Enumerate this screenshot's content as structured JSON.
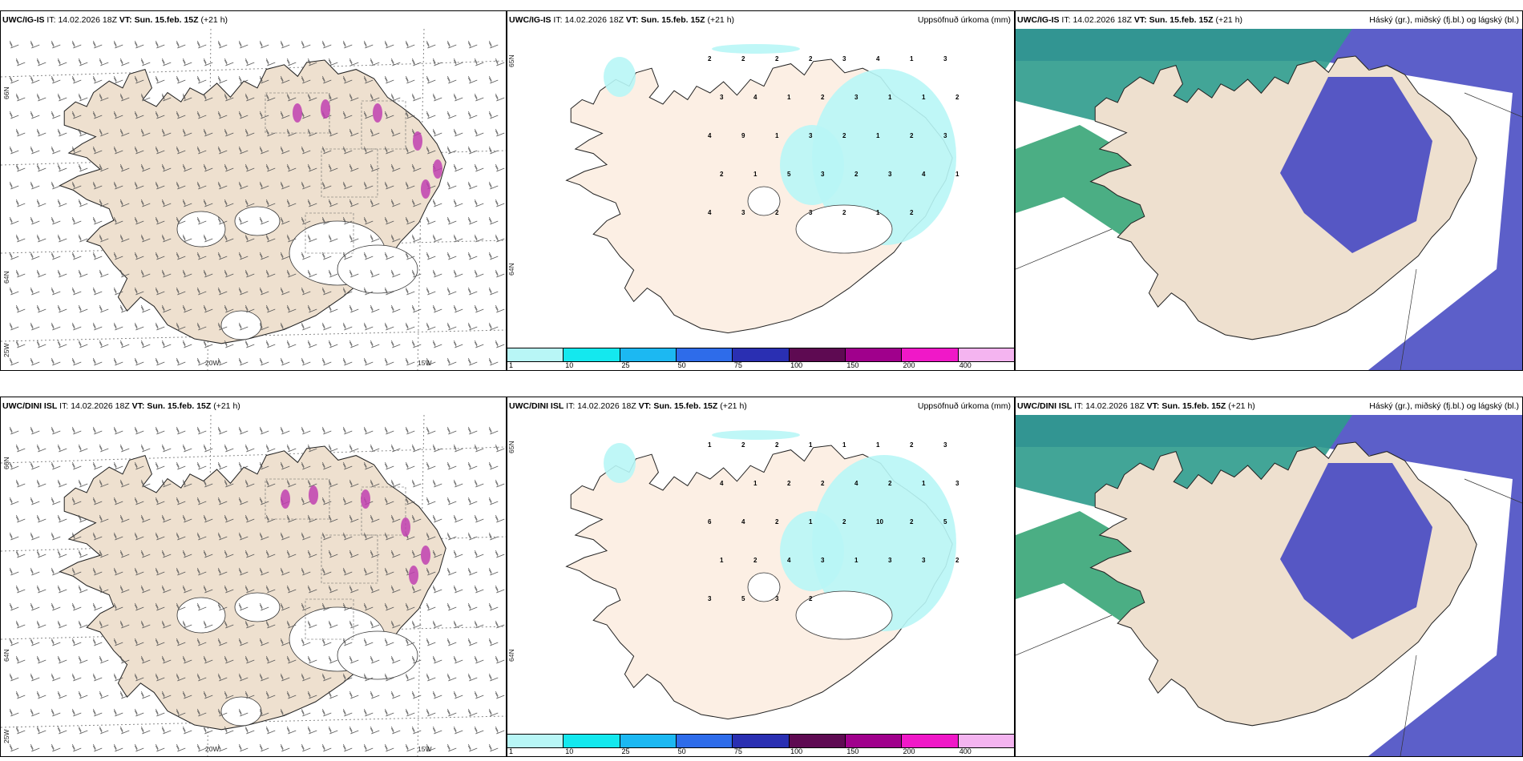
{
  "rows": [
    {
      "model": "UWC/IG-IS",
      "panels": [
        {
          "kind": "wind",
          "it_label": "IT:",
          "it_value": "14.02.2026 18Z",
          "vt_label": "VT:",
          "vt_value": "Sun. 15.feb. 15Z",
          "lead": "(+21 h)",
          "right_title": "",
          "lat_labels": [
            "66N",
            "64N",
            "25W"
          ],
          "lon_labels": [
            "20W",
            "15W"
          ]
        },
        {
          "kind": "precip",
          "it_label": "IT:",
          "it_value": "14.02.2026 18Z",
          "vt_label": "VT:",
          "vt_value": "Sun. 15.feb. 15Z",
          "lead": "(+21 h)",
          "right_title": "Uppsöfnuð úrkoma (mm)",
          "lat_labels": [
            "65N",
            "64N"
          ],
          "numbers": [
            "2",
            "2",
            "2",
            "2",
            "3",
            "4",
            "1",
            "3",
            "3",
            "4",
            "1",
            "2",
            "3",
            "1",
            "1",
            "2",
            "4",
            "9",
            "1",
            "3",
            "2",
            "1",
            "2",
            "3",
            "2",
            "1",
            "5",
            "3",
            "2",
            "3",
            "4",
            "1",
            "4",
            "3",
            "2",
            "3",
            "2",
            "1",
            "2"
          ]
        },
        {
          "kind": "cloud",
          "it_label": "IT:",
          "it_value": "14.02.2026 18Z",
          "vt_label": "VT:",
          "vt_value": "Sun. 15.feb. 15Z",
          "lead": "(+21 h)",
          "right_title": "Háský (gr.), miðský (fj.bl.) og lágský (bl.)"
        }
      ]
    },
    {
      "model": "UWC/DINI ISL",
      "panels": [
        {
          "kind": "wind",
          "it_label": "IT:",
          "it_value": "14.02.2026 18Z",
          "vt_label": "VT:",
          "vt_value": "Sun. 15.feb. 15Z",
          "lead": "(+21 h)",
          "right_title": "",
          "lat_labels": [
            "66N",
            "64N",
            "25W"
          ],
          "lon_labels": [
            "20W",
            "15W"
          ]
        },
        {
          "kind": "precip",
          "it_label": "IT:",
          "it_value": "14.02.2026 18Z",
          "vt_label": "VT:",
          "vt_value": "Sun. 15.feb. 15Z",
          "lead": "(+21 h)",
          "right_title": "Uppsöfnuð úrkoma (mm)",
          "lat_labels": [
            "65N",
            "64N"
          ],
          "numbers": [
            "1",
            "2",
            "2",
            "1",
            "1",
            "1",
            "2",
            "3",
            "4",
            "1",
            "2",
            "2",
            "4",
            "2",
            "1",
            "3",
            "6",
            "4",
            "2",
            "1",
            "2",
            "10",
            "2",
            "5",
            "1",
            "2",
            "4",
            "3",
            "1",
            "3",
            "3",
            "2",
            "3",
            "5",
            "3",
            "2"
          ]
        },
        {
          "kind": "cloud",
          "it_label": "IT:",
          "it_value": "14.02.2026 18Z",
          "vt_label": "VT:",
          "vt_value": "Sun. 15.feb. 15Z",
          "lead": "(+21 h)",
          "right_title": "Háský (gr.), miðský (fj.bl.) og lágský (bl.)"
        }
      ]
    }
  ],
  "precip_legend": {
    "labels": [
      "1",
      "10",
      "25",
      "50",
      "75",
      "100",
      "150",
      "200",
      "400"
    ],
    "colors": [
      "#b8f6f6",
      "#14e8ee",
      "#1cb8f2",
      "#2e6cea",
      "#2a2fb2",
      "#5e0a52",
      "#a0008c",
      "#f018c8",
      "#f4b4f0"
    ]
  },
  "colors": {
    "land": "#eee0cf",
    "land_precip": "#fcefe4",
    "precip_light": "#b8f6f6",
    "cloud_ocean": "#5c5fc9",
    "cloud_green": "#2ba06f",
    "cloud_teal": "#2d9b8c",
    "cloud_purple_land": "#4d4fc3",
    "highlight_pink": "#c040b0"
  }
}
